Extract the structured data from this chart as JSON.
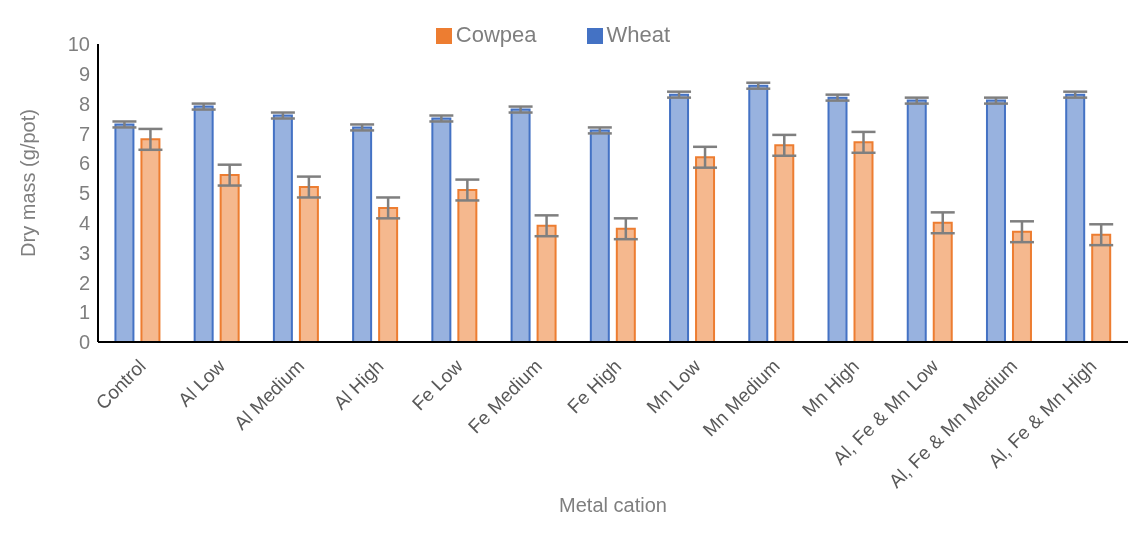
{
  "chart_data": {
    "type": "bar",
    "xlabel": "Metal cation",
    "ylabel": "Dry mass (g/pot)",
    "categories": [
      "Control",
      "Al Low",
      "Al Medium",
      "Al High",
      "Fe Low",
      "Fe Medium",
      "Fe High",
      "Mn Low",
      "Mn Medium",
      "Mn High",
      "Al, Fe & Mn Low",
      "Al, Fe & Mn Medium",
      "Al, Fe & Mn High"
    ],
    "series": [
      {
        "name": "Wheat",
        "color": "#4472c4",
        "values": [
          7.3,
          7.9,
          7.6,
          7.2,
          7.5,
          7.8,
          7.1,
          8.3,
          8.6,
          8.2,
          8.1,
          8.1,
          8.3
        ],
        "errors": [
          0.1,
          0.1,
          0.1,
          0.1,
          0.1,
          0.1,
          0.1,
          0.1,
          0.1,
          0.1,
          0.1,
          0.1,
          0.1
        ]
      },
      {
        "name": "Cowpea",
        "color": "#ed7d31",
        "values": [
          6.8,
          5.6,
          5.2,
          4.5,
          5.1,
          3.9,
          3.8,
          6.2,
          6.6,
          6.7,
          4.0,
          3.7,
          3.6
        ],
        "errors": [
          0.35,
          0.35,
          0.35,
          0.35,
          0.35,
          0.35,
          0.35,
          0.35,
          0.35,
          0.35,
          0.35,
          0.35,
          0.35
        ]
      }
    ],
    "ylim": [
      0,
      10
    ],
    "yticks": [
      0,
      1,
      2,
      3,
      4,
      5,
      6,
      7,
      8,
      9,
      10
    ],
    "grid": false,
    "legend": "top"
  }
}
